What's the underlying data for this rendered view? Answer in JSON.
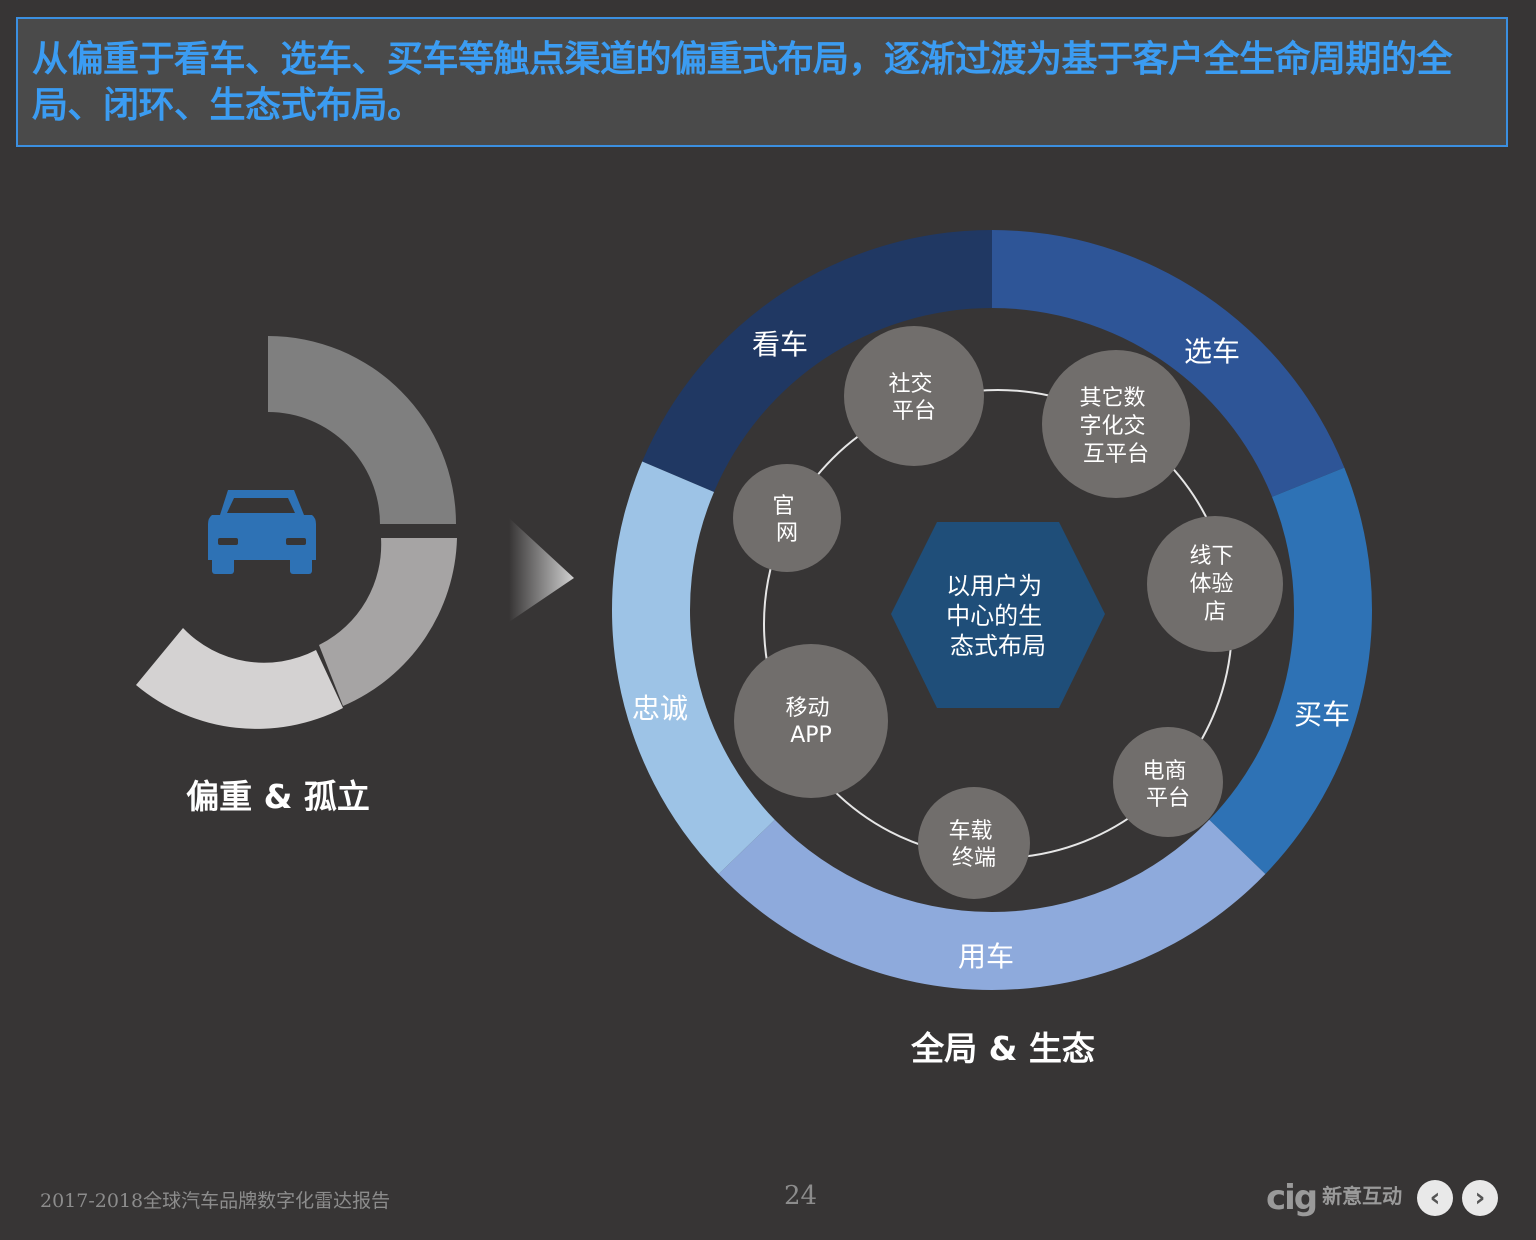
{
  "header": {
    "title": "从偏重于看车、选车、买车等触点渠道的偏重式布局，逐渐过渡为基于客户全生命周期的全局、闭环、生态式布局。"
  },
  "left": {
    "caption": "偏重 & 孤立",
    "icon": "car-icon"
  },
  "ring": {
    "segments": [
      {
        "label": "看车",
        "color": "#203863"
      },
      {
        "label": "选车",
        "color": "#2e5597"
      },
      {
        "label": "买车",
        "color": "#2e72b5"
      },
      {
        "label": "用车",
        "color": "#8eaadc"
      },
      {
        "label": "忠诚",
        "color": "#9dc3e6"
      }
    ],
    "caption": "全局 & 生态"
  },
  "center": {
    "lines": [
      "以用户为",
      "中心的生",
      "态式布局"
    ],
    "color": "#1f4e79"
  },
  "nodes": [
    {
      "lines": [
        "社交",
        "平台"
      ]
    },
    {
      "lines": [
        "其它数",
        "字化交",
        "互平台"
      ]
    },
    {
      "lines": [
        "线下",
        "体验",
        "店"
      ]
    },
    {
      "lines": [
        "电商",
        "平台"
      ]
    },
    {
      "lines": [
        "车载",
        "终端"
      ]
    },
    {
      "lines": [
        "移动",
        "APP"
      ]
    },
    {
      "lines": [
        "官",
        "网"
      ]
    }
  ],
  "footer": {
    "report_title": "2017-2018全球汽车品牌数字化雷达报告",
    "page_number": "24",
    "logo_mark": "cig",
    "logo_name": "新意互动",
    "prev_icon": "chevron-left-icon",
    "next_icon": "chevron-right-icon"
  }
}
